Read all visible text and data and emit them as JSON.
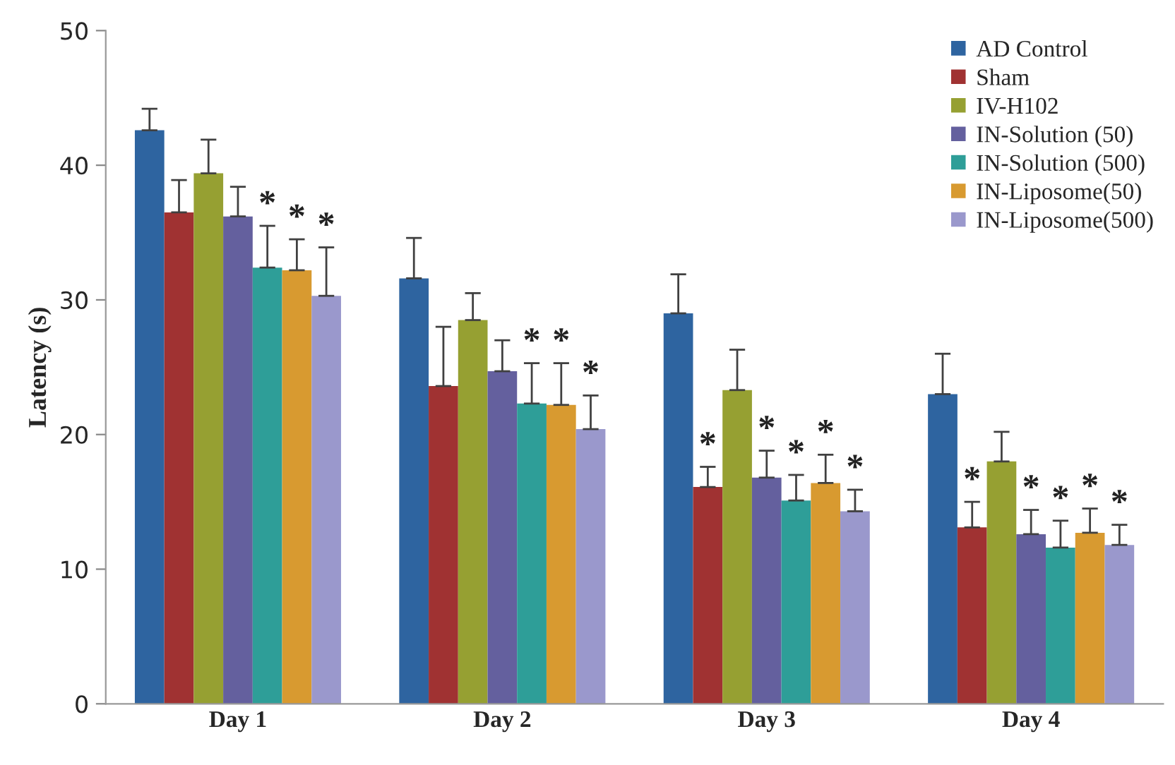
{
  "chart_data": {
    "type": "bar",
    "ylabel": "Latency (s)",
    "categories": [
      "Day 1",
      "Day 2",
      "Day 3",
      "Day 4"
    ],
    "ylim": [
      0,
      50
    ],
    "yticks": [
      0,
      10,
      20,
      30,
      40,
      50
    ],
    "grid": false,
    "legend": "top right",
    "series": [
      {
        "name": "AD Control",
        "color": "#2e64a0",
        "values": [
          42.6,
          31.6,
          29.0,
          23.0
        ],
        "errors": [
          [
            42.6,
            44.2
          ],
          [
            31.6,
            34.6
          ],
          [
            29.0,
            31.9
          ],
          [
            23.0,
            26.0
          ]
        ],
        "value_labels": [
          null,
          null,
          null,
          null
        ]
      },
      {
        "name": "Sham",
        "color": "#a03232",
        "values": [
          36.5,
          23.6,
          16.1,
          13.1
        ],
        "errors": [
          [
            36.5,
            38.9
          ],
          [
            23.6,
            28.0
          ],
          [
            16.1,
            17.6
          ],
          [
            13.1,
            15.0
          ]
        ],
        "value_labels": [
          null,
          null,
          "*",
          "*"
        ]
      },
      {
        "name": "IV-H102",
        "color": "#96a032",
        "values": [
          39.4,
          28.5,
          23.3,
          18.0
        ],
        "errors": [
          [
            39.4,
            41.9
          ],
          [
            28.5,
            30.5
          ],
          [
            23.3,
            26.3
          ],
          [
            18.0,
            20.2
          ]
        ],
        "value_labels": [
          null,
          null,
          null,
          null
        ]
      },
      {
        "name": "IN-Solution (50)",
        "color": "#64609e",
        "values": [
          36.2,
          24.7,
          16.8,
          12.6
        ],
        "errors": [
          [
            36.2,
            38.4
          ],
          [
            24.7,
            27.0
          ],
          [
            16.8,
            18.8
          ],
          [
            12.6,
            14.4
          ]
        ],
        "value_labels": [
          null,
          null,
          "*",
          "*"
        ]
      },
      {
        "name": "IN-Solution (500)",
        "color": "#2e9e98",
        "values": [
          32.4,
          22.3,
          15.1,
          11.6
        ],
        "errors": [
          [
            32.4,
            35.5
          ],
          [
            22.3,
            25.3
          ],
          [
            15.1,
            17.0
          ],
          [
            11.6,
            13.6
          ]
        ],
        "value_labels": [
          "*",
          "*",
          "*",
          "*"
        ]
      },
      {
        "name": "IN-Liposome(50)",
        "color": "#d89a30",
        "values": [
          32.2,
          22.2,
          16.4,
          12.7
        ],
        "errors": [
          [
            32.2,
            34.5
          ],
          [
            22.2,
            25.3
          ],
          [
            16.4,
            18.5
          ],
          [
            12.7,
            14.5
          ]
        ],
        "value_labels": [
          "*",
          "*",
          "*",
          "*"
        ]
      },
      {
        "name": "IN-Liposome(500)",
        "color": "#9a98cc",
        "values": [
          30.3,
          20.4,
          14.3,
          11.8
        ],
        "errors": [
          [
            30.3,
            33.9
          ],
          [
            20.4,
            22.9
          ],
          [
            14.3,
            15.9
          ],
          [
            11.8,
            13.3
          ]
        ],
        "value_labels": [
          "*",
          "*",
          "*",
          "*"
        ]
      }
    ]
  }
}
